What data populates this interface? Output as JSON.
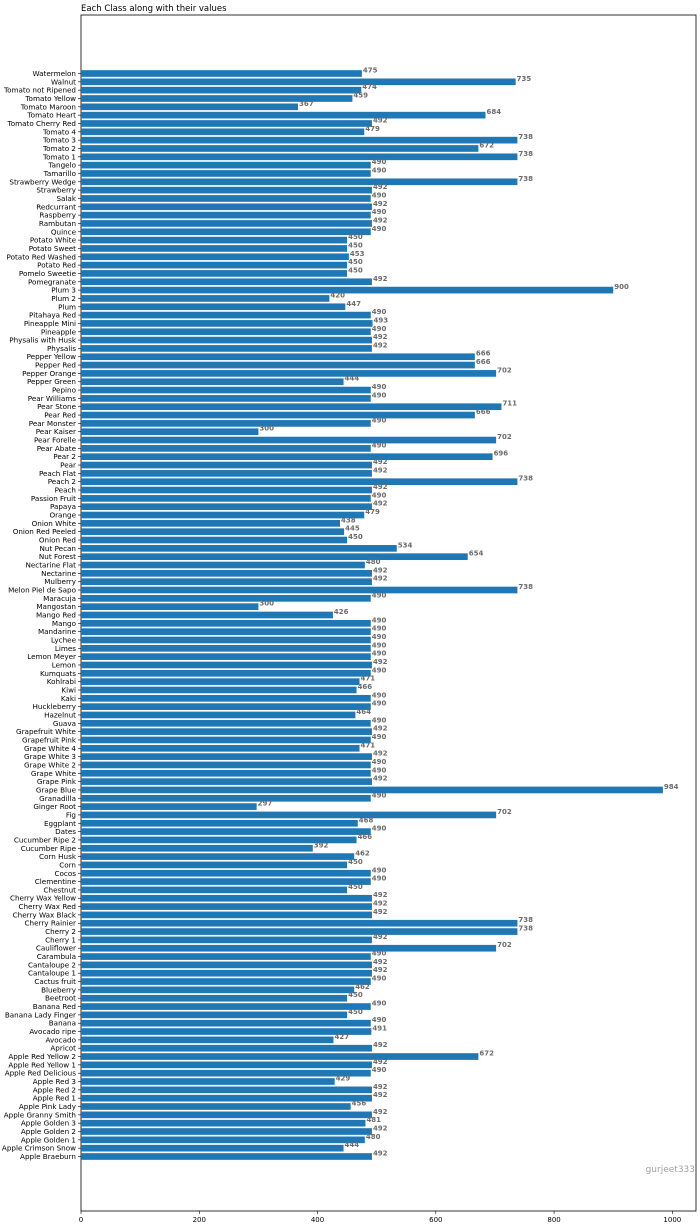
{
  "colors": {
    "bar": "#1f77b4",
    "value_text": "#6b6b6b",
    "watermark": "#a0a0a0"
  },
  "watermark": "gurjeet333",
  "chart_data": {
    "type": "bar",
    "orientation": "horizontal",
    "title": "Each Class along with their values",
    "xlabel": "",
    "ylabel": "",
    "xlim": [
      0,
      1040
    ],
    "xticks": [
      0,
      200,
      400,
      600,
      800,
      1000
    ],
    "grid": false,
    "legend": "none",
    "categories": [
      "Watermelon",
      "Walnut",
      "Tomato not Ripened",
      "Tomato Yellow",
      "Tomato Maroon",
      "Tomato Heart",
      "Tomato Cherry Red",
      "Tomato 4",
      "Tomato 3",
      "Tomato 2",
      "Tomato 1",
      "Tangelo",
      "Tamarillo",
      "Strawberry Wedge",
      "Strawberry",
      "Salak",
      "Redcurrant",
      "Raspberry",
      "Rambutan",
      "Quince",
      "Potato White",
      "Potato Sweet",
      "Potato Red Washed",
      "Potato Red",
      "Pomelo Sweetie",
      "Pomegranate",
      "Plum 3",
      "Plum 2",
      "Plum",
      "Pitahaya Red",
      "Pineapple Mini",
      "Pineapple",
      "Physalis with Husk",
      "Physalis",
      "Pepper Yellow",
      "Pepper Red",
      "Pepper Orange",
      "Pepper Green",
      "Pepino",
      "Pear Williams",
      "Pear Stone",
      "Pear Red",
      "Pear Monster",
      "Pear Kaiser",
      "Pear Forelle",
      "Pear Abate",
      "Pear 2",
      "Pear",
      "Peach Flat",
      "Peach 2",
      "Peach",
      "Passion Fruit",
      "Papaya",
      "Orange",
      "Onion White",
      "Onion Red Peeled",
      "Onion Red",
      "Nut Pecan",
      "Nut Forest",
      "Nectarine Flat",
      "Nectarine",
      "Mulberry",
      "Melon Piel de Sapo",
      "Maracuja",
      "Mangostan",
      "Mango Red",
      "Mango",
      "Mandarine",
      "Lychee",
      "Limes",
      "Lemon Meyer",
      "Lemon",
      "Kumquats",
      "Kohlrabi",
      "Kiwi",
      "Kaki",
      "Huckleberry",
      "Hazelnut",
      "Guava",
      "Grapefruit White",
      "Grapefruit Pink",
      "Grape White 4",
      "Grape White 3",
      "Grape White 2",
      "Grape White",
      "Grape Pink",
      "Grape Blue",
      "Granadilla",
      "Ginger Root",
      "Fig",
      "Eggplant",
      "Dates",
      "Cucumber Ripe 2",
      "Cucumber Ripe",
      "Corn Husk",
      "Corn",
      "Cocos",
      "Clementine",
      "Chestnut",
      "Cherry Wax Yellow",
      "Cherry Wax Red",
      "Cherry Wax Black",
      "Cherry Rainier",
      "Cherry 2",
      "Cherry 1",
      "Cauliflower",
      "Carambula",
      "Cantaloupe 2",
      "Cantaloupe 1",
      "Cactus fruit",
      "Blueberry",
      "Beetroot",
      "Banana Red",
      "Banana Lady Finger",
      "Banana",
      "Avocado ripe",
      "Avocado",
      "Apricot",
      "Apple Red Yellow 2",
      "Apple Red Yellow 1",
      "Apple Red Delicious",
      "Apple Red 3",
      "Apple Red 2",
      "Apple Red 1",
      "Apple Pink Lady",
      "Apple Granny Smith",
      "Apple Golden 3",
      "Apple Golden 2",
      "Apple Golden 1",
      "Apple Crimson Snow",
      "Apple Braeburn"
    ],
    "values": [
      475,
      735,
      474,
      459,
      367,
      684,
      492,
      479,
      738,
      672,
      738,
      490,
      490,
      738,
      492,
      490,
      492,
      490,
      492,
      490,
      450,
      450,
      453,
      450,
      450,
      492,
      900,
      420,
      447,
      490,
      493,
      490,
      492,
      492,
      666,
      666,
      702,
      444,
      490,
      490,
      711,
      666,
      490,
      300,
      702,
      490,
      696,
      492,
      492,
      738,
      492,
      490,
      492,
      479,
      438,
      445,
      450,
      534,
      654,
      480,
      492,
      492,
      738,
      490,
      300,
      426,
      490,
      490,
      490,
      490,
      490,
      492,
      490,
      471,
      466,
      490,
      490,
      464,
      490,
      492,
      490,
      471,
      492,
      490,
      490,
      492,
      984,
      490,
      297,
      702,
      468,
      490,
      466,
      392,
      462,
      450,
      490,
      490,
      450,
      492,
      492,
      492,
      738,
      738,
      492,
      702,
      490,
      492,
      492,
      490,
      462,
      450,
      490,
      450,
      490,
      491,
      427,
      492,
      672,
      492,
      490,
      429,
      492,
      492,
      456,
      492,
      481,
      492,
      480,
      444,
      492
    ]
  }
}
